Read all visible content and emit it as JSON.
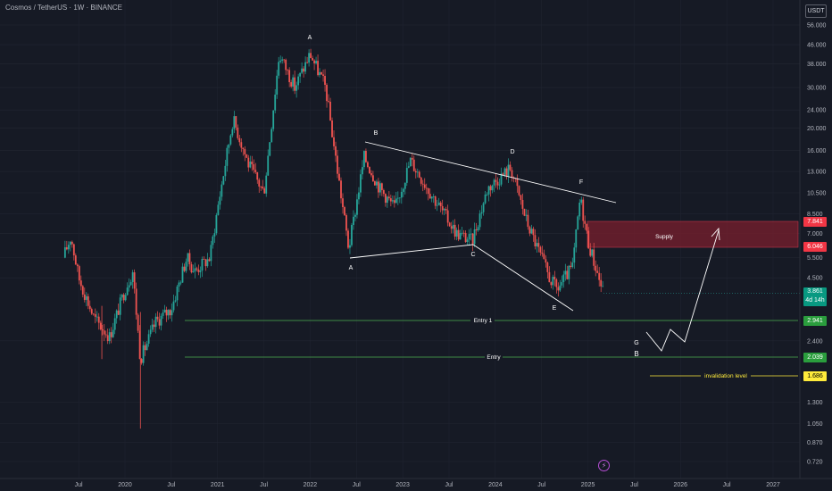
{
  "header": {
    "title": "Cosmos / TetherUS · 1W · BINANCE",
    "currency": "USDT"
  },
  "price_labels": {
    "supply_top": "7.841",
    "supply_bottom": "6.046",
    "current": "3.861",
    "countdown": "4d 14h",
    "entry1": "2.941",
    "entry": "2.039",
    "invalidation": "1.686"
  },
  "colors": {
    "up": "#26a69a",
    "down": "#ef5350",
    "supply_zone": "#7a1f2e",
    "entry_line": "#4caf50",
    "invalidation_line": "#ffeb3b",
    "background": "#161a25"
  },
  "annotations": {
    "supply": "Supply",
    "entry1": "Entry 1",
    "entry": "Entry",
    "invalidation": "invalidation level",
    "pattern_labels": [
      "A",
      "B",
      "A",
      "C",
      "D",
      "E",
      "F",
      "G",
      "B"
    ]
  },
  "chart_data": {
    "type": "candlestick",
    "symbol": "ATOMUSDT",
    "interval": "1W",
    "y_scale": "log",
    "y_ticks": [
      "56.000",
      "46.000",
      "38.000",
      "30.000",
      "24.000",
      "20.000",
      "16.000",
      "13.000",
      "10.500",
      "8.500",
      "7.000",
      "5.500",
      "4.500",
      "2.400",
      "1.300",
      "1.050",
      "0.870",
      "0.720"
    ],
    "x_ticks": [
      "Jul",
      "2020",
      "Jul",
      "2021",
      "Jul",
      "2022",
      "Jul",
      "2023",
      "Jul",
      "2024",
      "Jul",
      "2025",
      "Jul",
      "2026",
      "Jul",
      "2027"
    ],
    "price_path": [
      [
        "2019-05",
        5.5
      ],
      [
        "2019-06",
        6.8
      ],
      [
        "2019-07",
        4.5
      ],
      [
        "2019-09",
        3.0
      ],
      [
        "2019-11",
        2.5
      ],
      [
        "2020-01",
        4.0
      ],
      [
        "2020-02",
        4.8
      ],
      [
        "2020-03",
        2.0
      ],
      [
        "2020-05",
        2.9
      ],
      [
        "2020-07",
        3.3
      ],
      [
        "2020-09",
        5.5
      ],
      [
        "2020-10",
        4.8
      ],
      [
        "2020-12",
        5.5
      ],
      [
        "2021-01",
        9.0
      ],
      [
        "2021-03",
        22.0
      ],
      [
        "2021-05",
        14.0
      ],
      [
        "2021-07",
        10.5
      ],
      [
        "2021-09",
        42.0
      ],
      [
        "2021-11",
        30.0
      ],
      [
        "2022-01",
        42.0
      ],
      [
        "2022-03",
        30.0
      ],
      [
        "2022-06",
        6.0
      ],
      [
        "2022-08",
        15.0
      ],
      [
        "2022-10",
        11.0
      ],
      [
        "2022-12",
        9.0
      ],
      [
        "2023-02",
        14.5
      ],
      [
        "2023-05",
        10.0
      ],
      [
        "2023-08",
        7.0
      ],
      [
        "2023-10",
        6.5
      ],
      [
        "2023-12",
        11.0
      ],
      [
        "2024-03",
        13.5
      ],
      [
        "2024-05",
        8.0
      ],
      [
        "2024-08",
        4.5
      ],
      [
        "2024-09",
        4.0
      ],
      [
        "2024-11",
        5.0
      ],
      [
        "2024-12",
        10.0
      ],
      [
        "2025-01",
        6.5
      ],
      [
        "2025-03",
        3.861
      ]
    ],
    "levels": {
      "supply_zone": [
        6.046,
        7.841
      ],
      "entry1": 2.941,
      "entry": 2.039,
      "invalidation": 1.686
    },
    "current_price": 3.861
  }
}
